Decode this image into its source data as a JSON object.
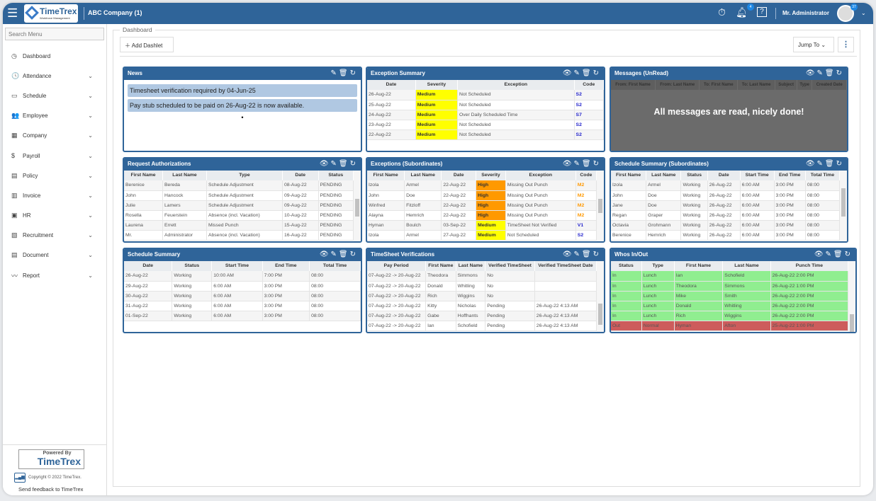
{
  "header": {
    "company": "ABC Company (1)",
    "logo_text": "TimeTrex",
    "logo_sub": "Workforce Management",
    "notif_count": "4",
    "user": "Mr. Administrator",
    "user_badge": "37"
  },
  "sidebar": {
    "search_placeholder": "Search Menu",
    "items": [
      {
        "label": "Dashboard",
        "icon": "◷",
        "chev": false
      },
      {
        "label": "Attendance",
        "icon": "🕓",
        "chev": true
      },
      {
        "label": "Schedule",
        "icon": "▭",
        "chev": true
      },
      {
        "label": "Employee",
        "icon": "👥",
        "chev": true
      },
      {
        "label": "Company",
        "icon": "▦",
        "chev": true
      },
      {
        "label": "Payroll",
        "icon": "$",
        "chev": true
      },
      {
        "label": "Policy",
        "icon": "▤",
        "chev": true
      },
      {
        "label": "Invoice",
        "icon": "▥",
        "chev": true
      },
      {
        "label": "HR",
        "icon": "▣",
        "chev": true
      },
      {
        "label": "Recruitment",
        "icon": "▧",
        "chev": true
      },
      {
        "label": "Document",
        "icon": "▤",
        "chev": true
      },
      {
        "label": "Report",
        "icon": "〰",
        "chev": true
      }
    ],
    "powered_by": "Powered By",
    "powered_brand": "TimeTrex",
    "copyright": "Copyright © 2022 TimeTrex.",
    "feedback": "Send feedback to TimeTrex"
  },
  "toolbar": {
    "section": "Dashboard",
    "add_dashlet": "Add Dashlet",
    "jump_to": "Jump To"
  },
  "colors": {
    "primary": "#2f6499",
    "medium": "#ffff00",
    "high": "#ff9900",
    "in": "#90ee90",
    "out": "#cd5c5c"
  },
  "news": {
    "title": "News",
    "items": [
      "Timesheet verification required by 04-Jun-25",
      "Pay stub scheduled to be paid on 26-Aug-22 is now available."
    ]
  },
  "dashlets": [
    {
      "id": "exception-summary",
      "title": "Exception Summary",
      "columns": [
        "Date",
        "Severity",
        "Exception",
        "Code"
      ],
      "rows": [
        [
          "26-Aug-22",
          "Medium",
          "Not Scheduled",
          "S2"
        ],
        [
          "25-Aug-22",
          "Medium",
          "Not Scheduled",
          "S2"
        ],
        [
          "24-Aug-22",
          "Medium",
          "Over Daily Scheduled Time",
          "S7"
        ],
        [
          "23-Aug-22",
          "Medium",
          "Not Scheduled",
          "S2"
        ],
        [
          "22-Aug-22",
          "Medium",
          "Not Scheduled",
          "S2"
        ]
      ]
    },
    {
      "id": "request-authorizations",
      "title": "Request Authorizations",
      "columns": [
        "First Name",
        "Last Name",
        "Type",
        "Date",
        "Status"
      ],
      "rows": [
        [
          "Berenice",
          "Bereda",
          "Schedule Adjustment",
          "08-Aug-22",
          "PENDING"
        ],
        [
          "John",
          "Hancock",
          "Schedule Adjustment",
          "09-Aug-22",
          "PENDING"
        ],
        [
          "Julie",
          "Lamers",
          "Schedule Adjustment",
          "09-Aug-22",
          "PENDING"
        ],
        [
          "Rosella",
          "Feuerstein",
          "Absence (incl. Vacation)",
          "10-Aug-22",
          "PENDING"
        ],
        [
          "Laurena",
          "Errett",
          "Missed Punch",
          "15-Aug-22",
          "PENDING"
        ],
        [
          "Mr.",
          "Administrator",
          "Absence (incl. Vacation)",
          "16-Aug-22",
          "PENDING"
        ]
      ]
    },
    {
      "id": "exceptions-subordinates",
      "title": "Exceptions (Subordinates)",
      "columns": [
        "First Name",
        "Last Name",
        "Date",
        "Severity",
        "Exception",
        "Code"
      ],
      "rows": [
        [
          "Izola",
          "Armel",
          "22-Aug-22",
          "High",
          "Missing Out Punch",
          "M2"
        ],
        [
          "John",
          "Doe",
          "22-Aug-22",
          "High",
          "Missing Out Punch",
          "M2"
        ],
        [
          "Winfred",
          "Fitzloff",
          "22-Aug-22",
          "High",
          "Missing Out Punch",
          "M2"
        ],
        [
          "Alayna",
          "Hemrich",
          "22-Aug-22",
          "High",
          "Missing Out Punch",
          "M2"
        ],
        [
          "Hyman",
          "Boulch",
          "03-Sep-22",
          "Medium",
          "TimeSheet Not Verified",
          "V1"
        ],
        [
          "Izola",
          "Armel",
          "27-Aug-22",
          "Medium",
          "Not Scheduled",
          "S2"
        ]
      ]
    },
    {
      "id": "schedule-summary-subordinates",
      "title": "Schedule Summary (Subordinates)",
      "columns": [
        "First Name",
        "Last Name",
        "Status",
        "Date",
        "Start Time",
        "End Time",
        "Total Time"
      ],
      "rows": [
        [
          "Izola",
          "Armel",
          "Working",
          "26-Aug-22",
          "6:00 AM",
          "3:00 PM",
          "08:00"
        ],
        [
          "John",
          "Doe",
          "Working",
          "26-Aug-22",
          "6:00 AM",
          "3:00 PM",
          "08:00"
        ],
        [
          "Jane",
          "Doe",
          "Working",
          "26-Aug-22",
          "6:00 AM",
          "3:00 PM",
          "08:00"
        ],
        [
          "Regan",
          "Graper",
          "Working",
          "26-Aug-22",
          "6:00 AM",
          "3:00 PM",
          "08:00"
        ],
        [
          "Octavia",
          "Grohmann",
          "Working",
          "26-Aug-22",
          "6:00 AM",
          "3:00 PM",
          "08:00"
        ],
        [
          "Berenice",
          "Hemrich",
          "Working",
          "26-Aug-22",
          "6:00 AM",
          "3:00 PM",
          "08:00"
        ]
      ]
    },
    {
      "id": "schedule-summary",
      "title": "Schedule Summary",
      "columns": [
        "Date",
        "Status",
        "Start Time",
        "End Time",
        "Total Time"
      ],
      "rows": [
        [
          "26-Aug-22",
          "Working",
          "10:00 AM",
          "7:00 PM",
          "08:00"
        ],
        [
          "29-Aug-22",
          "Working",
          "6:00 AM",
          "3:00 PM",
          "08:00"
        ],
        [
          "30-Aug-22",
          "Working",
          "6:00 AM",
          "3:00 PM",
          "08:00"
        ],
        [
          "31-Aug-22",
          "Working",
          "6:00 AM",
          "3:00 PM",
          "08:00"
        ],
        [
          "01-Sep-22",
          "Working",
          "6:00 AM",
          "3:00 PM",
          "08:00"
        ]
      ]
    },
    {
      "id": "timesheet-verifications",
      "title": "TimeSheet Verifications",
      "columns": [
        "Pay Period",
        "First Name",
        "Last Name",
        "Verified TimeSheet",
        "Verified TimeSheet Date"
      ],
      "rows": [
        [
          "07-Aug-22 -> 20-Aug-22",
          "Theodora",
          "Simmons",
          "No",
          ""
        ],
        [
          "07-Aug-22 -> 20-Aug-22",
          "Donald",
          "Whitling",
          "No",
          ""
        ],
        [
          "07-Aug-22 -> 20-Aug-22",
          "Rich",
          "Wiggins",
          "No",
          ""
        ],
        [
          "07-Aug-22 -> 20-Aug-22",
          "Kitty",
          "Nicholas",
          "Pending",
          "26-Aug-22 4:13 AM"
        ],
        [
          "07-Aug-22 -> 20-Aug-22",
          "Gabe",
          "Hoffhants",
          "Pending",
          "26-Aug-22 4:13 AM"
        ],
        [
          "07-Aug-22 -> 20-Aug-22",
          "Ian",
          "Schofield",
          "Pending",
          "26-Aug-22 4:13 AM"
        ]
      ]
    },
    {
      "id": "whos-in-out",
      "title": "Whos In/Out",
      "columns": [
        "Status",
        "Type",
        "First Name",
        "Last Name",
        "Punch Time"
      ],
      "rows": [
        [
          "In",
          "Lunch",
          "Ian",
          "Schofield",
          "26-Aug-22 2:00 PM"
        ],
        [
          "In",
          "Lunch",
          "Theodora",
          "Simmons",
          "26-Aug-22 1:00 PM"
        ],
        [
          "In",
          "Lunch",
          "Mike",
          "Smith",
          "26-Aug-22 2:00 PM"
        ],
        [
          "In",
          "Lunch",
          "Donald",
          "Whitling",
          "26-Aug-22 2:00 PM"
        ],
        [
          "In",
          "Lunch",
          "Rich",
          "Wiggins",
          "26-Aug-22 2:00 PM"
        ],
        [
          "Out",
          "Normal",
          "Hyman",
          "Afton",
          "25-Aug-22 1:00 PM"
        ]
      ]
    }
  ],
  "messages": {
    "title": "Messages (UnRead)",
    "columns": [
      "From: First Name",
      "From: Last Name",
      "To: First Name",
      "To: Last Name",
      "Subject",
      "Type",
      "Created Date"
    ],
    "empty": "All messages are read, nicely done!"
  }
}
